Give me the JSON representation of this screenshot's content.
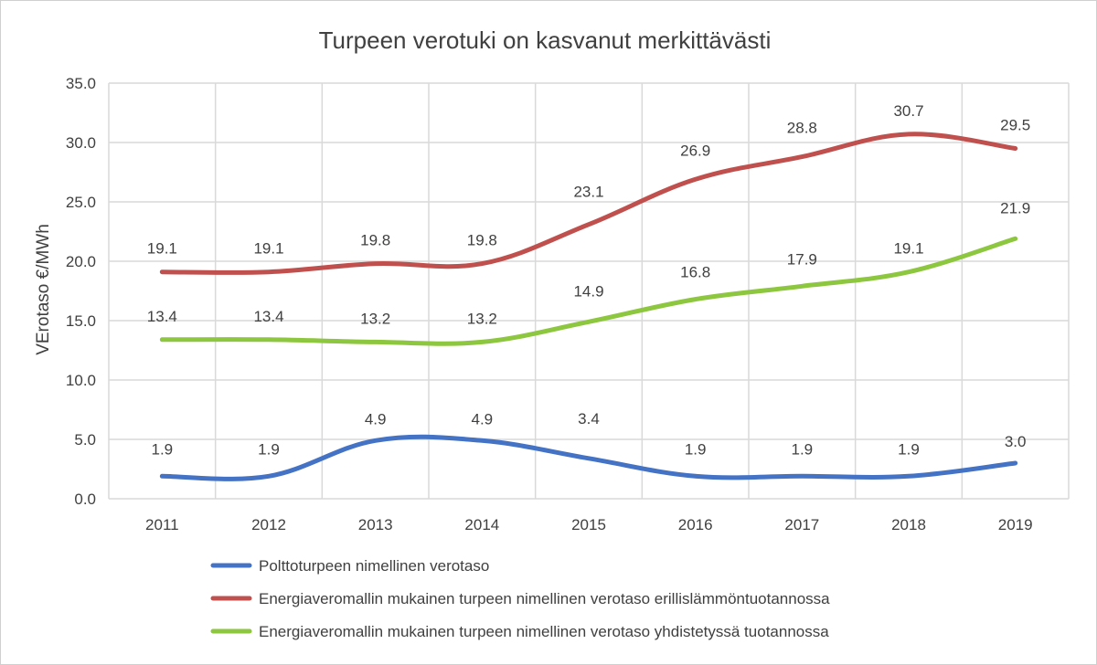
{
  "chart_data": {
    "type": "line",
    "title": "Turpeen verotuki on kasvanut merkittävästi",
    "ylabel": "VErotaso €/MWh",
    "xlabel": "",
    "ylim": [
      0,
      35
    ],
    "ytick_labels": [
      "0.0",
      "5.0",
      "10.0",
      "15.0",
      "20.0",
      "25.0",
      "30.0",
      "35.0"
    ],
    "grid": true,
    "legend_position": "bottom",
    "categories": [
      "2011",
      "2012",
      "2013",
      "2014",
      "2015",
      "2016",
      "2017",
      "2018",
      "2019"
    ],
    "series": [
      {
        "name": "Polttoturpeen nimellinen verotaso",
        "color": "#4472C4",
        "values": [
          1.9,
          1.9,
          4.9,
          4.9,
          3.4,
          1.9,
          1.9,
          1.9,
          3.0
        ],
        "labels": [
          "1.9",
          "1.9",
          "4.9",
          "4.9",
          "3.4",
          "1.9",
          "1.9",
          "1.9",
          "3.0"
        ]
      },
      {
        "name": "Energiaveromallin mukainen turpeen nimellinen verotaso erillislämmöntuotannossa",
        "color": "#C0504D",
        "values": [
          19.1,
          19.1,
          19.8,
          19.8,
          23.1,
          26.9,
          28.8,
          30.7,
          29.5
        ],
        "labels": [
          "19.1",
          "19.1",
          "19.8",
          "19.8",
          "23.1",
          "26.9",
          "28.8",
          "30.7",
          "29.5"
        ]
      },
      {
        "name": "Energiaveromallin mukainen turpeen nimellinen verotaso yhdistetyssä tuotannossa",
        "color": "#8DC63F",
        "values": [
          13.4,
          13.4,
          13.2,
          13.2,
          14.9,
          16.8,
          17.9,
          19.1,
          21.9
        ],
        "labels": [
          "13.4",
          "13.4",
          "13.2",
          "13.2",
          "14.9",
          "16.8",
          "17.9",
          "19.1",
          "21.9"
        ]
      }
    ]
  }
}
